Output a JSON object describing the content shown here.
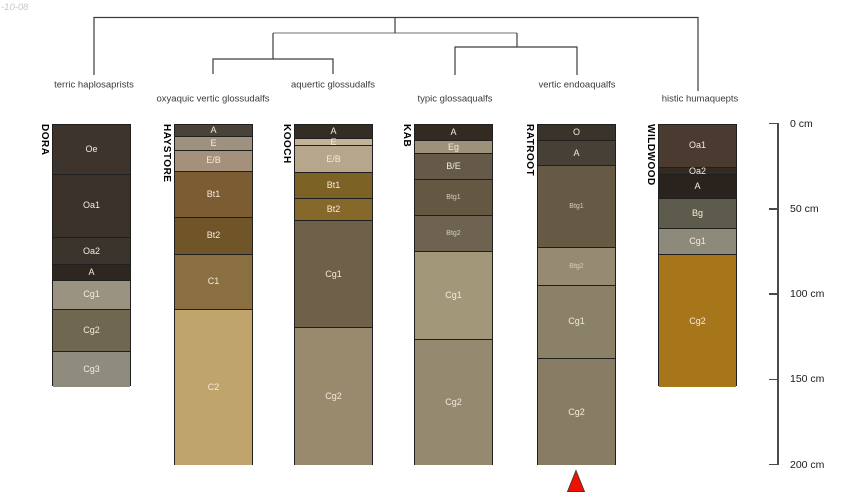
{
  "watermark": "-10-08",
  "chart_data": {
    "type": "dendrogram",
    "subtype": "soil-taxonomy-dendrogram-with-profile-sketches",
    "taxa": [
      {
        "label": "terric haplosaprists",
        "profile": "DORA",
        "label_row": "upper"
      },
      {
        "label": "oxyaquic vertic glossudalfs",
        "profile": "HAYSTORE",
        "label_row": "lower"
      },
      {
        "label": "aquertic glossudalfs",
        "profile": "KOOCH",
        "label_row": "upper"
      },
      {
        "label": "typic glossaqualfs",
        "profile": "KAB",
        "label_row": "lower"
      },
      {
        "label": "vertic endoaqualfs",
        "profile": "RATROOT",
        "label_row": "upper"
      },
      {
        "label": "histic humaquepts",
        "profile": "WILDWOOD",
        "label_row": "lower"
      }
    ],
    "tree": {
      "root_children": [
        "terric haplosaprists",
        {
          "children": [
            {
              "children": [
                "oxyaquic vertic glossudalfs",
                "aquertic glossudalfs"
              ]
            },
            {
              "children": [
                "typic glossaqualfs",
                "vertic endoaqualfs"
              ]
            }
          ]
        },
        "histic humaquepts"
      ]
    },
    "profiles": [
      {
        "id": "DORA",
        "horizons": [
          {
            "name": "Oe",
            "top_cm": 0,
            "bottom_cm": 29,
            "color": "#3d352d"
          },
          {
            "name": "Oa1",
            "top_cm": 29,
            "bottom_cm": 66,
            "color": "#3a322a"
          },
          {
            "name": "Oa2",
            "top_cm": 66,
            "bottom_cm": 82,
            "color": "#3b342c"
          },
          {
            "name": "A",
            "top_cm": 82,
            "bottom_cm": 91,
            "color": "#2e2721"
          },
          {
            "name": "Cg1",
            "top_cm": 91,
            "bottom_cm": 108,
            "color": "#9a9382"
          },
          {
            "name": "Cg2",
            "top_cm": 108,
            "bottom_cm": 133,
            "color": "#6f6750"
          },
          {
            "name": "Cg3",
            "top_cm": 133,
            "bottom_cm": 154,
            "color": "#8f8c7d"
          }
        ]
      },
      {
        "id": "HAYSTORE",
        "horizons": [
          {
            "name": "A",
            "top_cm": 0,
            "bottom_cm": 7,
            "color": "#4a4138"
          },
          {
            "name": "E",
            "top_cm": 7,
            "bottom_cm": 15,
            "color": "#9f9180"
          },
          {
            "name": "E/B",
            "top_cm": 15,
            "bottom_cm": 27,
            "color": "#a5917b"
          },
          {
            "name": "Bt1",
            "top_cm": 27,
            "bottom_cm": 54,
            "color": "#7c5c33"
          },
          {
            "name": "Bt2",
            "top_cm": 54,
            "bottom_cm": 76,
            "color": "#6f5527"
          },
          {
            "name": "C1",
            "top_cm": 76,
            "bottom_cm": 108,
            "color": "#8a7040"
          },
          {
            "name": "C2",
            "top_cm": 108,
            "bottom_cm": 200,
            "color": "#bfa46c"
          }
        ]
      },
      {
        "id": "KOOCH",
        "horizons": [
          {
            "name": "A",
            "top_cm": 0,
            "bottom_cm": 8,
            "color": "#342d25"
          },
          {
            "name": "E",
            "top_cm": 8,
            "bottom_cm": 12,
            "color": "#c2b298"
          },
          {
            "name": "E/B",
            "top_cm": 12,
            "bottom_cm": 28,
            "color": "#b5a68c"
          },
          {
            "name": "Bt1",
            "top_cm": 28,
            "bottom_cm": 43,
            "color": "#7d6226"
          },
          {
            "name": "Bt2",
            "top_cm": 43,
            "bottom_cm": 56,
            "color": "#85682a"
          },
          {
            "name": "Cg1",
            "top_cm": 56,
            "bottom_cm": 119,
            "color": "#6e6049"
          },
          {
            "name": "Cg2",
            "top_cm": 119,
            "bottom_cm": 200,
            "color": "#998a6d"
          }
        ]
      },
      {
        "id": "KAB",
        "horizons": [
          {
            "name": "A",
            "top_cm": 0,
            "bottom_cm": 9,
            "color": "#332a22"
          },
          {
            "name": "Eg",
            "top_cm": 9,
            "bottom_cm": 17,
            "color": "#9c9179"
          },
          {
            "name": "B/E",
            "top_cm": 17,
            "bottom_cm": 32,
            "color": "#655a49"
          },
          {
            "name": "Btg1",
            "top_cm": 32,
            "bottom_cm": 53,
            "color": "#645843",
            "small": true
          },
          {
            "name": "Btg2",
            "top_cm": 53,
            "bottom_cm": 74,
            "color": "#6e6350",
            "small": true
          },
          {
            "name": "Cg1",
            "top_cm": 74,
            "bottom_cm": 126,
            "color": "#a39779"
          },
          {
            "name": "Cg2",
            "top_cm": 126,
            "bottom_cm": 200,
            "color": "#95896f"
          }
        ]
      },
      {
        "id": "RATROOT",
        "horizons": [
          {
            "name": "O",
            "top_cm": 0,
            "bottom_cm": 9,
            "color": "#3a332b"
          },
          {
            "name": "A",
            "top_cm": 9,
            "bottom_cm": 24,
            "color": "#474037"
          },
          {
            "name": "Btg1",
            "top_cm": 24,
            "bottom_cm": 72,
            "color": "#665a44",
            "small": true
          },
          {
            "name": "Btg2",
            "top_cm": 72,
            "bottom_cm": 94,
            "color": "#968a72",
            "small": true
          },
          {
            "name": "Cg1",
            "top_cm": 94,
            "bottom_cm": 137,
            "color": "#8b8068"
          },
          {
            "name": "Cg2",
            "top_cm": 137,
            "bottom_cm": 200,
            "color": "#887c64"
          }
        ]
      },
      {
        "id": "WILDWOOD",
        "horizons": [
          {
            "name": "Oa1",
            "top_cm": 0,
            "bottom_cm": 25,
            "color": "#4b3a2f"
          },
          {
            "name": "Oa2",
            "top_cm": 25,
            "bottom_cm": 29,
            "color": "#332a23"
          },
          {
            "name": "A",
            "top_cm": 29,
            "bottom_cm": 43,
            "color": "#2a221c"
          },
          {
            "name": "Bg",
            "top_cm": 43,
            "bottom_cm": 61,
            "color": "#5d5b4b"
          },
          {
            "name": "Cg1",
            "top_cm": 61,
            "bottom_cm": 76,
            "color": "#8e8a7b"
          },
          {
            "name": "Cg2",
            "top_cm": 76,
            "bottom_cm": 154,
            "color": "#a7761b"
          }
        ]
      }
    ],
    "depth_axis": {
      "unit": "cm",
      "range": [
        0,
        200
      ],
      "ticks": [
        {
          "label": "0 cm",
          "cm": 0
        },
        {
          "label": "50 cm",
          "cm": 50
        },
        {
          "label": "100 cm",
          "cm": 100
        },
        {
          "label": "150 cm",
          "cm": 150
        },
        {
          "label": "200 cm",
          "cm": 200
        }
      ]
    },
    "marker": {
      "shape": "triangle-up",
      "color": "#ee1100",
      "below_profile": "RATROOT"
    }
  }
}
